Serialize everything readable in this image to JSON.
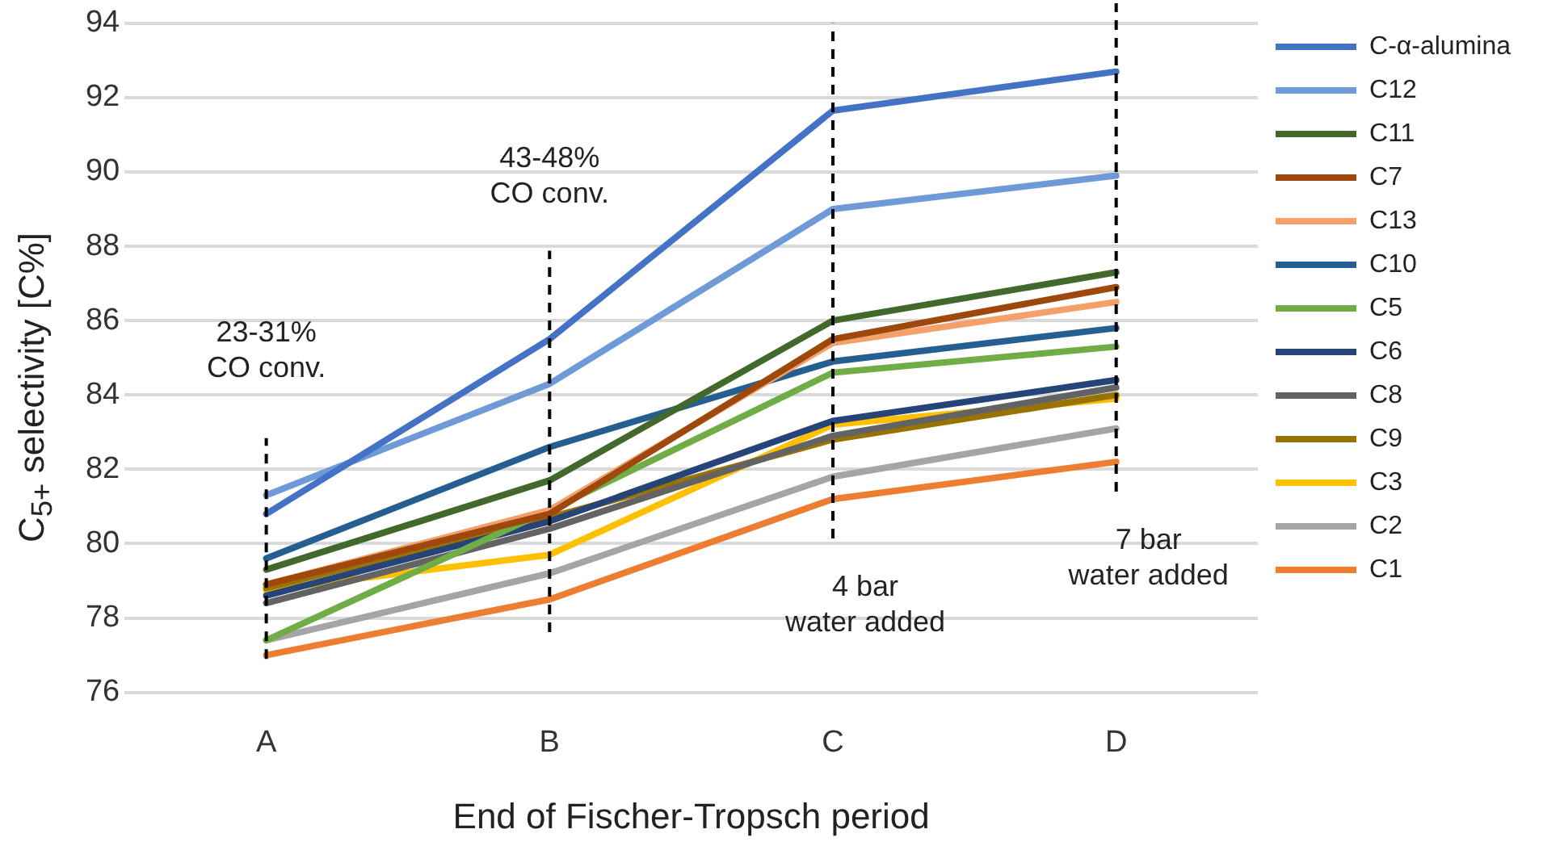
{
  "chart_data": {
    "type": "line",
    "xlabel": "End of Fischer-Tropsch period",
    "ylabel": "C$_{5+}$ selectivity [C%]",
    "categories": [
      "A",
      "B",
      "C",
      "D"
    ],
    "ylim": [
      76,
      94
    ],
    "yticks": [
      76,
      78,
      80,
      82,
      84,
      86,
      88,
      90,
      92,
      94
    ],
    "grid": "y",
    "legend": "right",
    "marker": "none",
    "line_style": "solid",
    "series": [
      {
        "name": "C-α-alumina",
        "color": "#4472c4",
        "values": [
          80.8,
          85.5,
          91.65,
          92.7
        ]
      },
      {
        "name": "C12",
        "color": "#6f9ad8",
        "values": [
          81.3,
          84.3,
          89.0,
          89.9
        ]
      },
      {
        "name": "C11",
        "color": "#43682b",
        "values": [
          79.3,
          81.7,
          86.0,
          87.3
        ]
      },
      {
        "name": "C7",
        "color": "#9e480e",
        "values": [
          78.9,
          80.8,
          85.5,
          86.9
        ]
      },
      {
        "name": "C13",
        "color": "#f4a06a",
        "values": [
          78.9,
          80.9,
          85.4,
          86.5
        ]
      },
      {
        "name": "C10",
        "color": "#255e91",
        "values": [
          79.6,
          82.6,
          84.9,
          85.8
        ]
      },
      {
        "name": "C5",
        "color": "#70ad47",
        "values": [
          77.4,
          80.9,
          84.6,
          85.3
        ]
      },
      {
        "name": "C6",
        "color": "#264478",
        "values": [
          78.6,
          80.6,
          83.3,
          84.4
        ]
      },
      {
        "name": "C8",
        "color": "#636363",
        "values": [
          78.4,
          80.4,
          82.9,
          84.2
        ]
      },
      {
        "name": "C9",
        "color": "#997300",
        "values": [
          78.8,
          80.7,
          82.8,
          84.0
        ]
      },
      {
        "name": "C3",
        "color": "#ffc000",
        "values": [
          78.75,
          79.7,
          83.2,
          83.9
        ]
      },
      {
        "name": "C2",
        "color": "#a5a5a5",
        "values": [
          77.4,
          79.2,
          81.8,
          83.1
        ]
      },
      {
        "name": "C1",
        "color": "#ed7d31",
        "values": [
          77.0,
          78.5,
          81.2,
          82.2
        ]
      }
    ],
    "ref_lines": [
      {
        "axis": "x",
        "value": "A",
        "line_style": "dashed",
        "color": "#000000",
        "label": "23-31%\nCO conv."
      },
      {
        "axis": "x",
        "value": "B",
        "line_style": "dashed",
        "color": "#000000",
        "label": "43-48%\nCO conv."
      },
      {
        "axis": "x",
        "value": "C",
        "line_style": "dashed",
        "color": "#000000",
        "label": "4 bar\nwater added"
      },
      {
        "axis": "x",
        "value": "D",
        "line_style": "dashed",
        "color": "#000000",
        "label": "7 bar\nwater added"
      }
    ]
  }
}
